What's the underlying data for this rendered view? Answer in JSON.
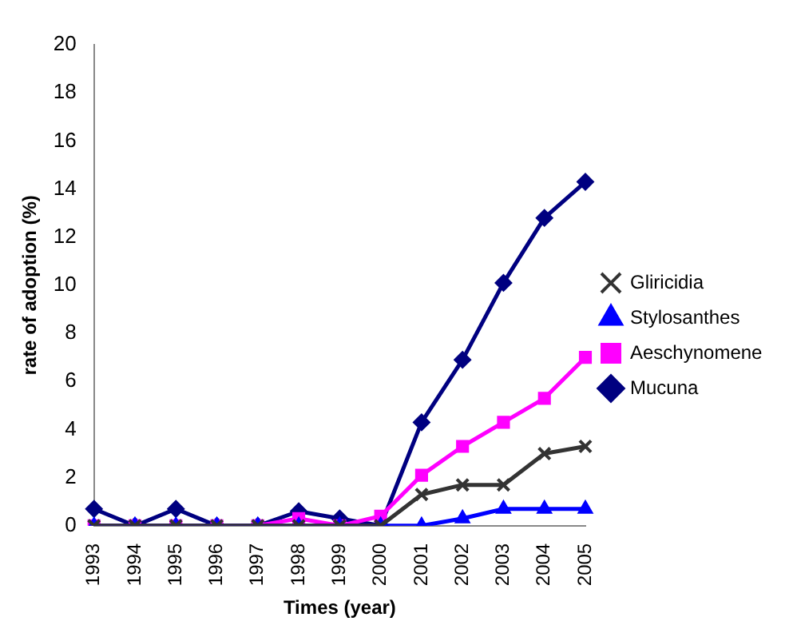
{
  "chart_data": {
    "type": "line",
    "xlabel": "Times (year)",
    "ylabel": "rate of adoption (%)",
    "categories": [
      "1993",
      "1994",
      "1995",
      "1996",
      "1997",
      "1998",
      "1999",
      "2000",
      "2001",
      "2002",
      "2003",
      "2004",
      "2005"
    ],
    "ylim": [
      0,
      20
    ],
    "yticks": [
      0,
      2,
      4,
      6,
      8,
      10,
      12,
      14,
      16,
      18,
      20
    ],
    "grid": false,
    "legend": "right",
    "series": [
      {
        "name": "Mucuna",
        "color": "#000080",
        "marker": "diamond",
        "values": [
          0.7,
          0,
          0.7,
          0,
          0,
          0.6,
          0.3,
          0,
          4.3,
          6.9,
          10.1,
          12.8,
          14.3
        ]
      },
      {
        "name": "Aeschynomene",
        "color": "#ff00ff",
        "marker": "square",
        "values": [
          0,
          0,
          0,
          0,
          0,
          0.3,
          0,
          0.4,
          2.1,
          3.3,
          4.3,
          5.3,
          7.0
        ]
      },
      {
        "name": "Stylosanthes",
        "color": "#0000ff",
        "marker": "triangle",
        "values": [
          0,
          0,
          0,
          0,
          0,
          0,
          0,
          0,
          0,
          0.3,
          0.7,
          0.7,
          0.7
        ]
      },
      {
        "name": "Gliricidia",
        "color": "#333333",
        "marker": "cross",
        "values": [
          0,
          0,
          0,
          0,
          0,
          0,
          0,
          0,
          1.3,
          1.7,
          1.7,
          3.0,
          3.3
        ]
      }
    ]
  }
}
